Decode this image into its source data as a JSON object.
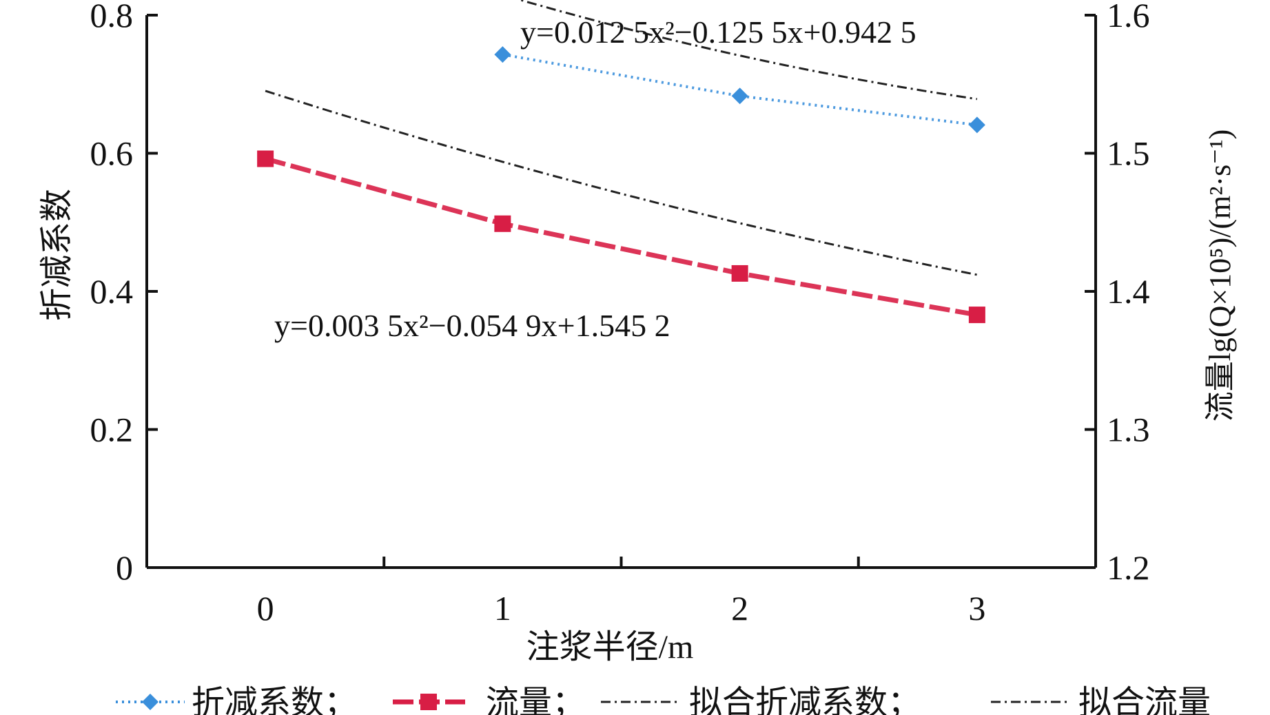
{
  "chart_data": {
    "type": "line",
    "x_axis": {
      "label": "注浆半径/m",
      "ticks": [
        0,
        1,
        2,
        3
      ],
      "range": [
        -0.5,
        3.5
      ]
    },
    "y_axis_left": {
      "label": "折减系数",
      "ticks": [
        "0",
        "0.2",
        "0.4",
        "0.6",
        "0.8"
      ],
      "range": [
        0,
        0.8
      ]
    },
    "y_axis_right": {
      "label": "流量lg(Q×10⁵)/(m²·s⁻¹)",
      "ticks": [
        "1.2",
        "1.3",
        "1.4",
        "1.5",
        "1.6"
      ],
      "range": [
        1.2,
        1.6
      ]
    },
    "series": [
      {
        "name": "折减系数",
        "axis": "left",
        "color": "#3a8fdb",
        "marker": "diamond",
        "x": [
          1,
          2,
          3
        ],
        "values": [
          0.743,
          0.683,
          0.641
        ]
      },
      {
        "name": "流量",
        "axis": "right",
        "color": "#d81e45",
        "marker": "square",
        "x": [
          0,
          1,
          2,
          3
        ],
        "values": [
          1.496,
          1.449,
          1.413,
          1.383
        ]
      }
    ],
    "fits": [
      {
        "name": "拟合折减系数",
        "axis": "left",
        "coefficients": [
          0.0125,
          -0.1255,
          0.9425
        ],
        "x_range": [
          0.3,
          3
        ]
      },
      {
        "name": "拟合流量",
        "axis": "right",
        "coefficients": [
          0.0035,
          -0.0549,
          1.5452
        ],
        "x_range": [
          0,
          3
        ]
      }
    ],
    "annotations": [
      {
        "id": "eq1",
        "text": "y=0.012 5x²−0.125 5x+0.942 5"
      },
      {
        "id": "eq2",
        "text": "y=0.003 5x²−0.054 9x+1.545 2"
      }
    ],
    "legend": {
      "placement": "bottom",
      "items": [
        "折减系数；",
        "流量；",
        "拟合折减系数；",
        "拟合流量"
      ]
    },
    "grid": false
  }
}
